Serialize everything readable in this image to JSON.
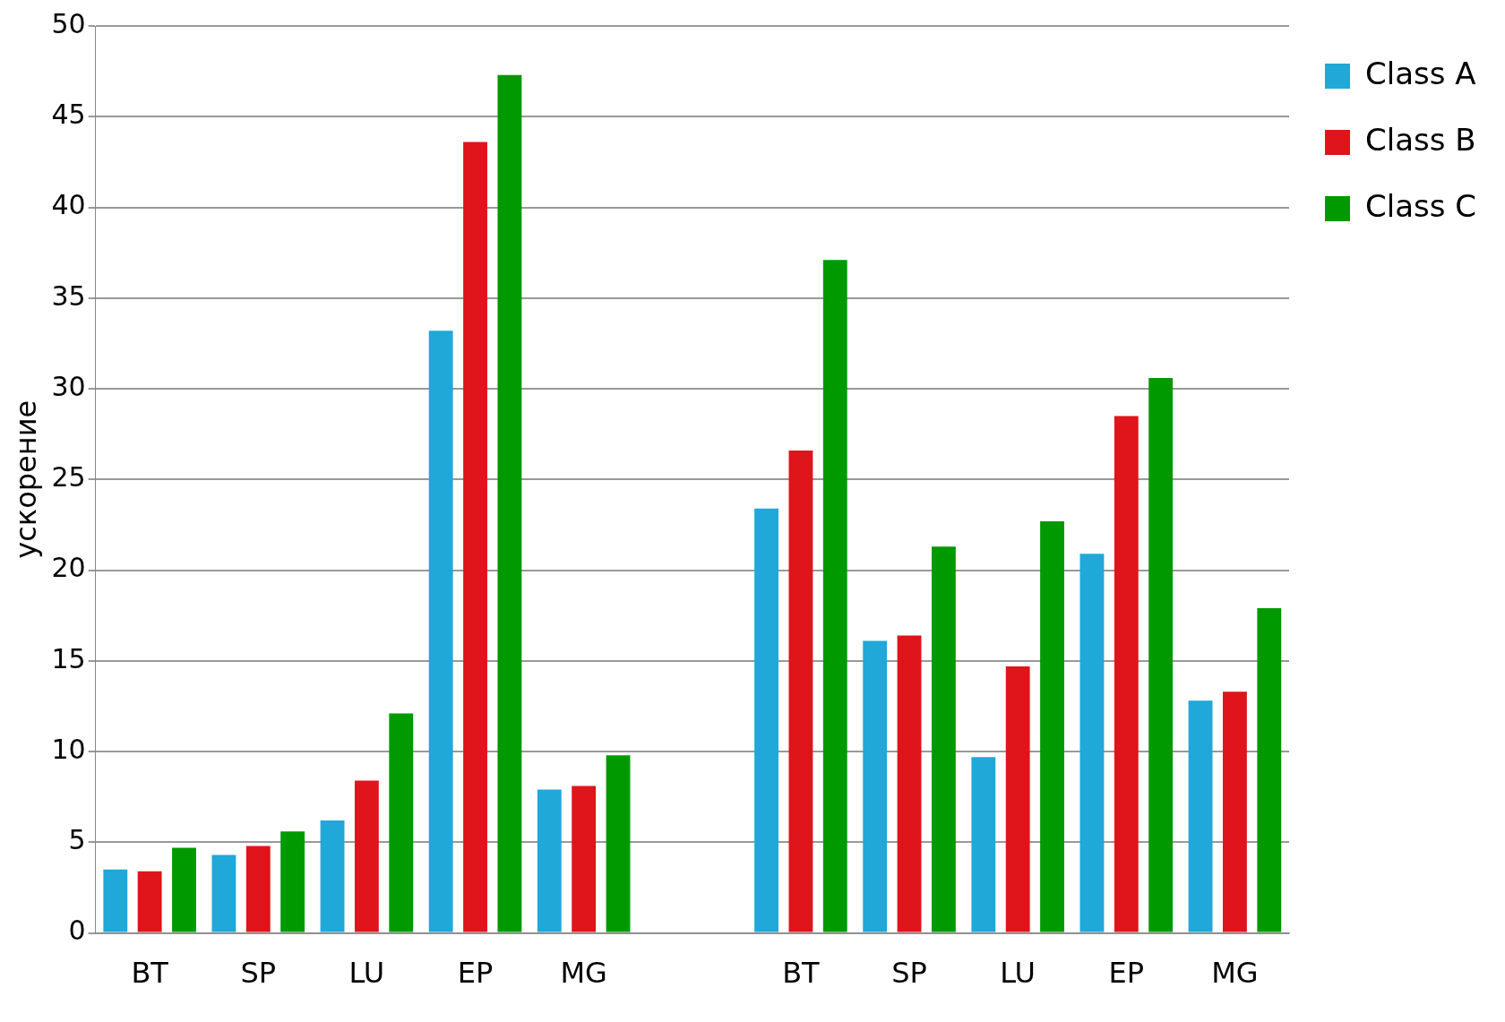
{
  "chart_data": {
    "type": "bar",
    "ylabel": "ускорение",
    "categories": [
      "BT",
      "SP",
      "LU",
      "EP",
      "MG",
      null,
      "BT",
      "SP",
      "LU",
      "EP",
      "MG"
    ],
    "series": [
      {
        "name": "Class A",
        "color": "#1fa8d8",
        "values": [
          3.5,
          4.3,
          6.2,
          33.2,
          7.9,
          null,
          23.4,
          16.1,
          9.7,
          20.9,
          12.8
        ]
      },
      {
        "name": "Class B",
        "color": "#e0141b",
        "values": [
          3.4,
          4.8,
          8.4,
          43.6,
          8.1,
          null,
          26.6,
          16.4,
          14.7,
          28.5,
          13.3
        ]
      },
      {
        "name": "Class C",
        "color": "#009900",
        "values": [
          4.7,
          5.6,
          12.1,
          47.3,
          9.8,
          null,
          37.1,
          21.3,
          22.7,
          30.6,
          17.9
        ]
      }
    ],
    "ylim": [
      0,
      50
    ],
    "yticks": [
      0,
      5,
      10,
      15,
      20,
      25,
      30,
      35,
      40,
      45,
      50
    ],
    "grid": "y",
    "legend": "top right"
  }
}
